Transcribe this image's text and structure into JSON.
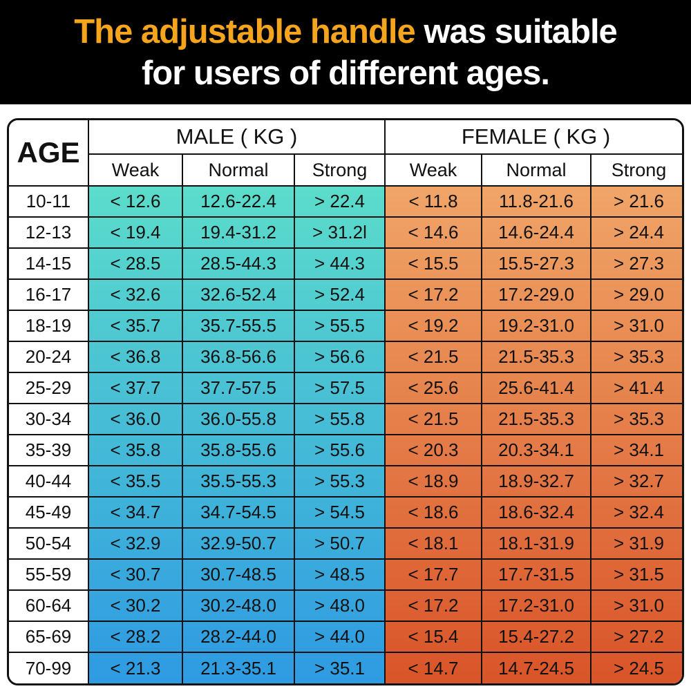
{
  "banner": {
    "title_accent": "The adjustable handle",
    "title_rest": " was suitable",
    "title_line2": "for users of different ages.",
    "accent_color": "#F5A41E",
    "background": "#000000"
  },
  "table": {
    "age_header": "AGE",
    "male_header": "MALE ( KG )",
    "female_header": "FEMALE ( KG )",
    "sub_headers": [
      "Weak",
      "Normal",
      "Strong"
    ],
    "male_gradient": {
      "top": "#5CDCCA",
      "bottom": "#2E9AE2"
    },
    "female_gradient": {
      "top": "#F0A568",
      "bottom": "#D95429"
    }
  },
  "chart_data": {
    "type": "table",
    "title": "The adjustable handle was suitable for users of different ages.",
    "columns": [
      "AGE",
      "MALE Weak (KG)",
      "MALE Normal (KG)",
      "MALE Strong (KG)",
      "FEMALE Weak (KG)",
      "FEMALE Normal (KG)",
      "FEMALE Strong (KG)"
    ],
    "rows": [
      [
        "10-11",
        "< 12.6",
        "12.6-22.4",
        "> 22.4",
        "< 11.8",
        "11.8-21.6",
        "> 21.6"
      ],
      [
        "12-13",
        "< 19.4",
        "19.4-31.2",
        "> 31.2l",
        "< 14.6",
        "14.6-24.4",
        "> 24.4"
      ],
      [
        "14-15",
        "< 28.5",
        "28.5-44.3",
        "> 44.3",
        "< 15.5",
        "15.5-27.3",
        "> 27.3"
      ],
      [
        "16-17",
        "< 32.6",
        "32.6-52.4",
        "> 52.4",
        "< 17.2",
        "17.2-29.0",
        "> 29.0"
      ],
      [
        "18-19",
        "< 35.7",
        "35.7-55.5",
        "> 55.5",
        "< 19.2",
        "19.2-31.0",
        "> 31.0"
      ],
      [
        "20-24",
        "< 36.8",
        "36.8-56.6",
        "> 56.6",
        "< 21.5",
        "21.5-35.3",
        "> 35.3"
      ],
      [
        "25-29",
        "< 37.7",
        "37.7-57.5",
        "> 57.5",
        "< 25.6",
        "25.6-41.4",
        "> 41.4"
      ],
      [
        "30-34",
        "< 36.0",
        "36.0-55.8",
        "> 55.8",
        "< 21.5",
        "21.5-35.3",
        "> 35.3"
      ],
      [
        "35-39",
        "< 35.8",
        "35.8-55.6",
        "> 55.6",
        "< 20.3",
        "20.3-34.1",
        "> 34.1"
      ],
      [
        "40-44",
        "< 35.5",
        "35.5-55.3",
        "> 55.3",
        "< 18.9",
        "18.9-32.7",
        "> 32.7"
      ],
      [
        "45-49",
        "< 34.7",
        "34.7-54.5",
        "> 54.5",
        "< 18.6",
        "18.6-32.4",
        "> 32.4"
      ],
      [
        "50-54",
        "< 32.9",
        "32.9-50.7",
        "> 50.7",
        "< 18.1",
        "18.1-31.9",
        "> 31.9"
      ],
      [
        "55-59",
        "< 30.7",
        "30.7-48.5",
        "> 48.5",
        "< 17.7",
        "17.7-31.5",
        "> 31.5"
      ],
      [
        "60-64",
        "< 30.2",
        "30.2-48.0",
        "> 48.0",
        "< 17.2",
        "17.2-31.0",
        "> 31.0"
      ],
      [
        "65-69",
        "< 28.2",
        "28.2-44.0",
        "> 44.0",
        "< 15.4",
        "15.4-27.2",
        "> 27.2"
      ],
      [
        "70-99",
        "< 21.3",
        "21.3-35.1",
        "> 35.1",
        "< 14.7",
        "14.7-24.5",
        "> 24.5"
      ]
    ]
  }
}
